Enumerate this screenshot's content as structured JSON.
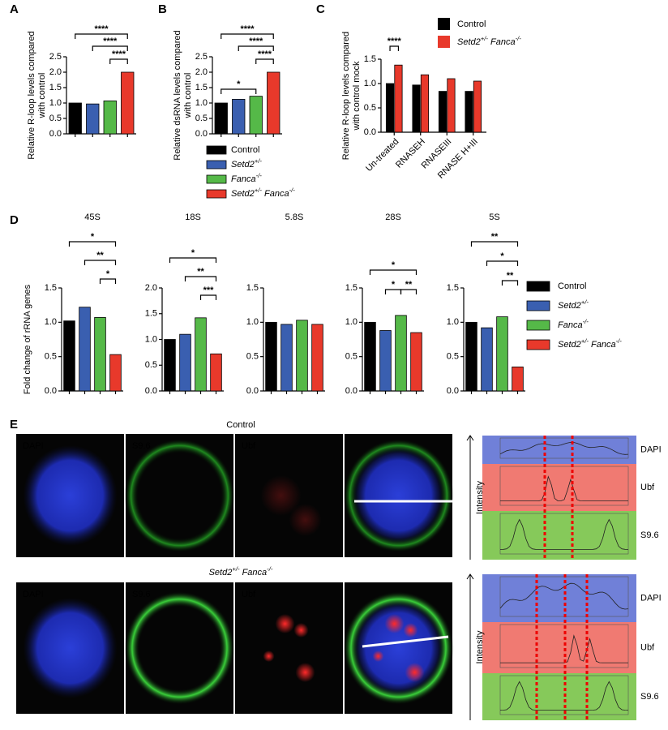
{
  "panel_labels": [
    "A",
    "B",
    "C",
    "D",
    "E"
  ],
  "chart_data": [
    {
      "type": "bar",
      "y_label": [
        "Relative R-loop levels compared",
        "with control"
      ],
      "values": [
        1.0,
        0.97,
        1.07,
        2.0
      ],
      "colors": [
        "#000000",
        "#3a5fb0",
        "#55b948",
        "#e8392b"
      ],
      "ylim": [
        0,
        2.5
      ],
      "yticks": [
        {
          "value": 0,
          "label": "0.0"
        },
        {
          "value": 0.5,
          "label": "0.5"
        },
        {
          "value": 1,
          "label": "1.0"
        },
        {
          "value": 1.5,
          "label": "1.5"
        },
        {
          "value": 2,
          "label": "2.0"
        },
        {
          "value": 2.5,
          "label": "2.5"
        }
      ],
      "annotations": [
        "****",
        "****",
        "****"
      ]
    },
    {
      "type": "bar",
      "y_label": [
        "Relative dsRNA levels compared",
        "with control"
      ],
      "values": [
        1.0,
        1.12,
        1.22,
        2.0
      ],
      "colors": [
        "#000000",
        "#3a5fb0",
        "#55b948",
        "#e8392b"
      ],
      "ylim": [
        0,
        2.5
      ],
      "yticks": [
        {
          "value": 0,
          "label": "0.0"
        },
        {
          "value": 0.5,
          "label": "0.5"
        },
        {
          "value": 1,
          "label": "1.0"
        },
        {
          "value": 1.5,
          "label": "1.5"
        },
        {
          "value": 2,
          "label": "2.0"
        },
        {
          "value": 2.5,
          "label": "2.5"
        }
      ],
      "annotations": [
        "****",
        "****",
        "****",
        "*"
      ],
      "legend": [
        "Control",
        "Setd2+/-",
        "Fanca-/-",
        "Setd2+/- Fanca-/-"
      ]
    },
    {
      "type": "grouped_bar",
      "y_label": [
        "Relative R-loop levels compared",
        "with control mock"
      ],
      "categories": [
        "Un-treated",
        "RNASEH",
        "RNASEIII",
        "RNASE H+III"
      ],
      "series": [
        {
          "name": "Control",
          "color": "#000000",
          "values": [
            1.0,
            0.97,
            0.84,
            0.84
          ]
        },
        {
          "name": "Setd2+/- Fanca-/-",
          "color": "#e8392b",
          "values": [
            1.38,
            1.18,
            1.1,
            1.05
          ]
        }
      ],
      "ylim": [
        0,
        1.5
      ],
      "yticks": [
        {
          "value": 0,
          "label": "0.0"
        },
        {
          "value": 0.5,
          "label": "0.5"
        },
        {
          "value": 1,
          "label": "1.0"
        },
        {
          "value": 1.5,
          "label": "1.5"
        }
      ],
      "annotations": [
        "****"
      ]
    },
    {
      "type": "bar",
      "title": "45S",
      "y_label": [
        "Fold change of rRNA genes"
      ],
      "values": [
        1.02,
        1.22,
        1.07,
        0.53
      ],
      "colors": [
        "#000000",
        "#3a5fb0",
        "#55b948",
        "#e8392b"
      ],
      "ylim": [
        0,
        1.5
      ],
      "yticks": [
        {
          "value": 0,
          "label": "0.0"
        },
        {
          "value": 0.5,
          "label": "0.5"
        },
        {
          "value": 1,
          "label": "1.0"
        },
        {
          "value": 1.5,
          "label": "1.5"
        }
      ],
      "annotations": [
        "*",
        "**",
        "*"
      ]
    },
    {
      "type": "bar",
      "title": "18S",
      "values": [
        1.0,
        1.1,
        1.42,
        0.72
      ],
      "colors": [
        "#000000",
        "#3a5fb0",
        "#55b948",
        "#e8392b"
      ],
      "ylim": [
        0,
        2
      ],
      "yticks": [
        {
          "value": 0,
          "label": "0.0"
        },
        {
          "value": 0.5,
          "label": "0.5"
        },
        {
          "value": 1,
          "label": "1.0"
        },
        {
          "value": 1.5,
          "label": "1.5"
        },
        {
          "value": 2,
          "label": "2.0"
        }
      ],
      "annotations": [
        "*",
        "**",
        "***"
      ]
    },
    {
      "type": "bar",
      "title": "5.8S",
      "values": [
        1.0,
        0.97,
        1.03,
        0.97
      ],
      "colors": [
        "#000000",
        "#3a5fb0",
        "#55b948",
        "#e8392b"
      ],
      "ylim": [
        0,
        1.5
      ],
      "yticks": [
        {
          "value": 0,
          "label": "0.0"
        },
        {
          "value": 0.5,
          "label": "0.5"
        },
        {
          "value": 1,
          "label": "1.0"
        },
        {
          "value": 1.5,
          "label": "1.5"
        }
      ],
      "annotations": []
    },
    {
      "type": "bar",
      "title": "28S",
      "values": [
        1.0,
        0.88,
        1.1,
        0.85
      ],
      "colors": [
        "#000000",
        "#3a5fb0",
        "#55b948",
        "#e8392b"
      ],
      "ylim": [
        0,
        1.5
      ],
      "yticks": [
        {
          "value": 0,
          "label": "0.0"
        },
        {
          "value": 0.5,
          "label": "0.5"
        },
        {
          "value": 1,
          "label": "1.0"
        },
        {
          "value": 1.5,
          "label": "1.5"
        }
      ],
      "annotations": [
        "*",
        "*",
        "**"
      ]
    },
    {
      "type": "bar",
      "title": "5S",
      "values": [
        1.0,
        0.92,
        1.08,
        0.35
      ],
      "colors": [
        "#000000",
        "#3a5fb0",
        "#55b948",
        "#e8392b"
      ],
      "ylim": [
        0,
        1.5
      ],
      "yticks": [
        {
          "value": 0,
          "label": "0.0"
        },
        {
          "value": 0.5,
          "label": "0.5"
        },
        {
          "value": 1,
          "label": "1.0"
        },
        {
          "value": 1.5,
          "label": "1.5"
        }
      ],
      "annotations": [
        "**",
        "*",
        "**"
      ],
      "legend": [
        "Control",
        "Setd2+/-",
        "Fanca-/-",
        "Setd2+/- Fanca-/-"
      ]
    }
  ],
  "imaging": [
    {
      "title": "Control",
      "channels": [
        "DAPI",
        "S9.6",
        "Ubf"
      ],
      "profile_axis": "Intensity",
      "profile_labels": [
        "DAPI",
        "Ubf",
        "S9.6"
      ]
    },
    {
      "title": "Setd2+/- Fanca-/-",
      "channels": [
        "DAPI",
        "S9.6",
        "Ubf"
      ],
      "profile_axis": "Intensity",
      "profile_labels": [
        "DAPI",
        "Ubf",
        "S9.6"
      ]
    }
  ]
}
